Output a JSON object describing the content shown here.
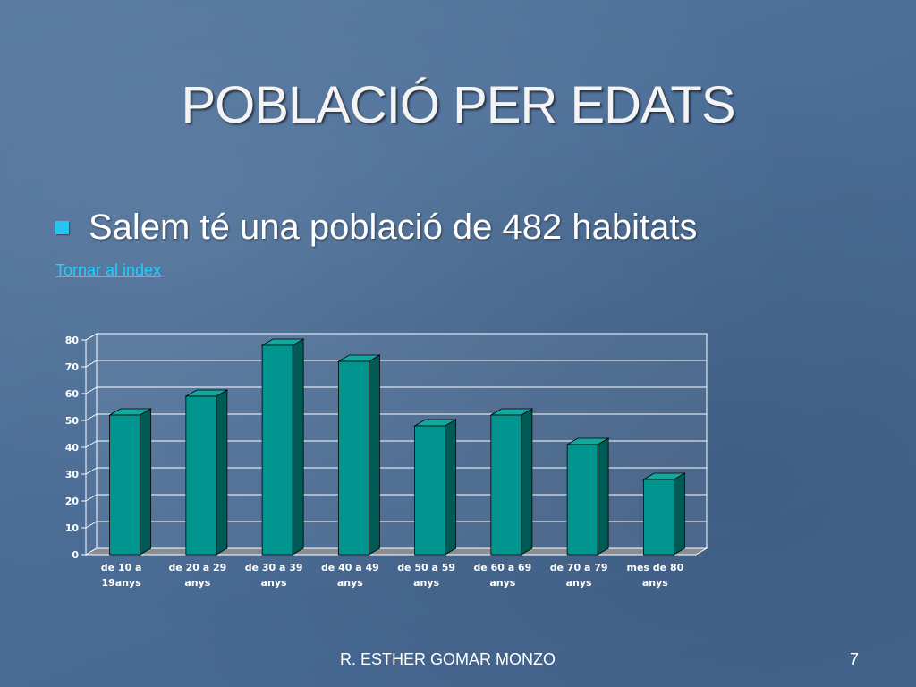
{
  "slide": {
    "title": "POBLACIÓ PER EDATS",
    "bullet": "Salem té una població de 482 habitats",
    "link": "Tornar al index",
    "footer": "R. ESTHER GOMAR MONZO",
    "page_number": "7"
  },
  "colors": {
    "bar_front": "#00968f",
    "bar_top": "#13a89e",
    "bar_side": "#005a56",
    "floor": "#8a8d92",
    "wall": "#ffffff",
    "tick_text": "#ffffff"
  },
  "chart_data": {
    "type": "bar",
    "title": "",
    "xlabel": "",
    "ylabel": "",
    "ylim": [
      0,
      80
    ],
    "yticks": [
      0,
      10,
      20,
      30,
      40,
      50,
      60,
      70,
      80
    ],
    "grid": true,
    "categories": [
      [
        "de 10 a",
        "19anys"
      ],
      [
        "de 20 a 29",
        "anys"
      ],
      [
        "de 30 a 39",
        "anys"
      ],
      [
        "de 40 a 49",
        "anys"
      ],
      [
        "de 50 a 59",
        "anys"
      ],
      [
        "de 60 a 69",
        "anys"
      ],
      [
        "de 70 a 79",
        "anys"
      ],
      [
        "mes de 80",
        "anys"
      ]
    ],
    "values": [
      52,
      59,
      78,
      72,
      48,
      52,
      41,
      28
    ]
  }
}
